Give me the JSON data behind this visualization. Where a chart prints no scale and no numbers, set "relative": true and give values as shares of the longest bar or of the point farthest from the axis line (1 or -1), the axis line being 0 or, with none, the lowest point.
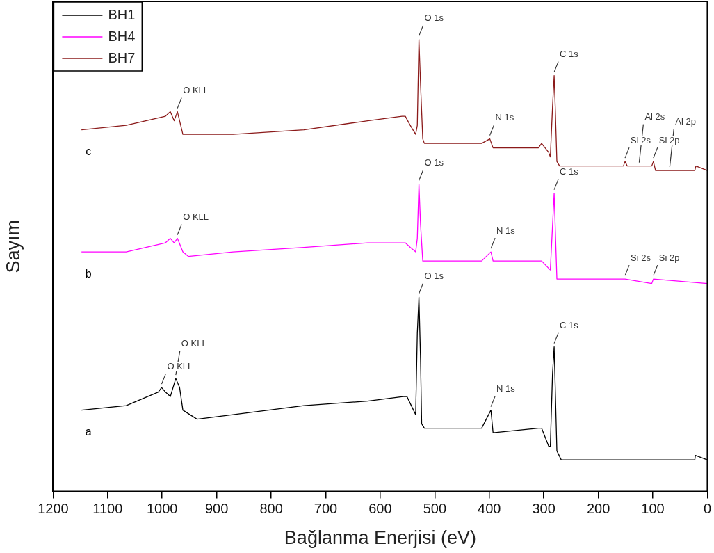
{
  "chart_data": {
    "type": "line",
    "xlabel": "Bağlanma Enerjisi (eV)",
    "ylabel": "Sayım",
    "relative": true,
    "xlim": [
      1200,
      0
    ],
    "xticks": [
      1200,
      1100,
      1000,
      900,
      800,
      700,
      600,
      500,
      400,
      300,
      200,
      100,
      0
    ],
    "tick_labels": "x",
    "legend": "top left",
    "grid": false,
    "marker": "none",
    "line_style": "solid",
    "series": [
      {
        "name": "BH1",
        "color": "#000000",
        "x": [
          1148,
          1066,
          1007,
          1001,
          994,
          985,
          975,
          968,
          962,
          936,
          870,
          740,
          623,
          558,
          551,
          535,
          532,
          529,
          526,
          524,
          519,
          414,
          397,
          393,
          310,
          304,
          291,
          288,
          284,
          281,
          279,
          276,
          268,
          23,
          22,
          0
        ],
        "values": [
          0.18,
          0.19,
          0.22,
          0.23,
          0.22,
          0.21,
          0.25,
          0.23,
          0.18,
          0.16,
          0.17,
          0.19,
          0.2,
          0.21,
          0.21,
          0.17,
          0.35,
          0.43,
          0.29,
          0.15,
          0.14,
          0.14,
          0.18,
          0.13,
          0.14,
          0.14,
          0.1,
          0.1,
          0.26,
          0.32,
          0.23,
          0.09,
          0.07,
          0.07,
          0.08,
          0.07
        ]
      },
      {
        "name": "BH4",
        "color": "#ff00ff",
        "x": [
          1148,
          1066,
          994,
          985,
          978,
          972,
          962,
          952,
          870,
          740,
          623,
          554,
          545,
          535,
          532,
          529,
          526,
          522,
          519,
          414,
          397,
          393,
          310,
          304,
          288,
          281,
          276,
          271,
          151,
          102,
          99,
          0
        ],
        "values": [
          0.53,
          0.53,
          0.55,
          0.56,
          0.55,
          0.56,
          0.53,
          0.52,
          0.53,
          0.54,
          0.55,
          0.55,
          0.54,
          0.53,
          0.56,
          0.68,
          0.59,
          0.51,
          0.51,
          0.51,
          0.53,
          0.51,
          0.51,
          0.51,
          0.49,
          0.66,
          0.47,
          0.47,
          0.47,
          0.46,
          0.47,
          0.46
        ]
      },
      {
        "name": "BH7",
        "color": "#8b1a1a",
        "x": [
          1148,
          1066,
          994,
          985,
          978,
          972,
          962,
          952,
          870,
          740,
          623,
          560,
          554,
          545,
          535,
          532,
          529,
          526,
          522,
          519,
          414,
          399,
          393,
          310,
          304,
          291,
          288,
          284,
          281,
          279,
          276,
          271,
          154,
          151,
          147,
          125,
          102,
          99,
          95,
          69,
          23,
          21,
          0
        ],
        "values": [
          0.8,
          0.81,
          0.83,
          0.84,
          0.82,
          0.84,
          0.79,
          0.79,
          0.79,
          0.8,
          0.82,
          0.83,
          0.83,
          0.81,
          0.79,
          0.81,
          1.0,
          0.9,
          0.78,
          0.77,
          0.77,
          0.78,
          0.76,
          0.76,
          0.77,
          0.75,
          0.74,
          0.85,
          0.92,
          0.85,
          0.73,
          0.72,
          0.72,
          0.73,
          0.72,
          0.72,
          0.72,
          0.73,
          0.71,
          0.71,
          0.71,
          0.72,
          0.71
        ]
      }
    ],
    "annotations": [
      {
        "text": "O KLL",
        "x": 972,
        "y": 0.84
      },
      {
        "text": "O 1s",
        "x": 529,
        "y": 1.0
      },
      {
        "text": "N 1s",
        "x": 399,
        "y": 0.78
      },
      {
        "text": "C 1s",
        "x": 281,
        "y": 0.92
      },
      {
        "text": "Si 2s",
        "x": 151,
        "y": 0.73
      },
      {
        "text": "Al 2s",
        "x": 125,
        "y": 0.72
      },
      {
        "text": "Si 2p",
        "x": 99,
        "y": 0.73
      },
      {
        "text": "Al 2p",
        "x": 69,
        "y": 0.71
      },
      {
        "text": "c",
        "x": 1148,
        "y": 0.8
      },
      {
        "text": "O KLL",
        "x": 972,
        "y": 0.56
      },
      {
        "text": "O 1s",
        "x": 529,
        "y": 0.68
      },
      {
        "text": "N 1s",
        "x": 397,
        "y": 0.53
      },
      {
        "text": "C 1s",
        "x": 281,
        "y": 0.66
      },
      {
        "text": "Si 2s",
        "x": 151,
        "y": 0.47
      },
      {
        "text": "Si 2p",
        "x": 99,
        "y": 0.47
      },
      {
        "text": "b",
        "x": 1148,
        "y": 0.53
      },
      {
        "text": "O KLL",
        "x": 1001,
        "y": 0.23
      },
      {
        "text": "O KLL",
        "x": 975,
        "y": 0.25
      },
      {
        "text": "O 1s",
        "x": 529,
        "y": 0.43
      },
      {
        "text": "N 1s",
        "x": 397,
        "y": 0.18
      },
      {
        "text": "C 1s",
        "x": 281,
        "y": 0.32
      },
      {
        "text": "a",
        "x": 1148,
        "y": 0.18
      }
    ]
  }
}
